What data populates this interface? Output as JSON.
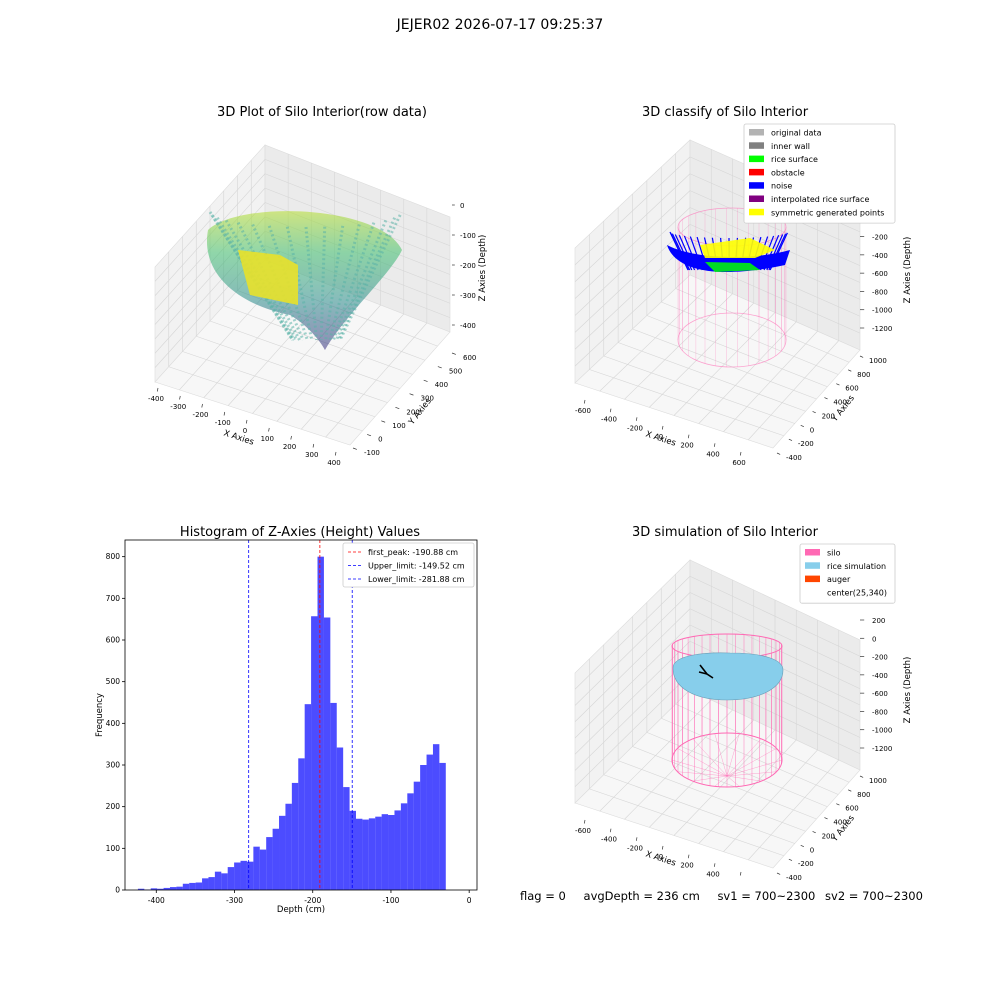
{
  "suptitle": "JEJER02 2026-07-17 09:25:37",
  "panels": {
    "raw": {
      "title": "3D Plot of Silo Interior(row data)",
      "xlabel": "X Axies",
      "ylabel": "Y Axies",
      "zlabel": "Z Axies (Depth)",
      "xticks": [
        "-400",
        "-300",
        "-200",
        "-100",
        "0",
        "100",
        "200",
        "300",
        "400"
      ],
      "yticks": [
        "-100",
        "0",
        "100",
        "200",
        "300",
        "400",
        "500",
        "600"
      ],
      "zticks": [
        "0",
        "-100",
        "-200",
        "-300",
        "-400"
      ]
    },
    "classify": {
      "title": "3D classify of Silo Interior",
      "xlabel": "X Axies",
      "ylabel": "Y Axies",
      "zlabel": "Z Axies (Depth)",
      "xticks": [
        "-600",
        "-400",
        "-200",
        "0",
        "200",
        "400",
        "600"
      ],
      "yticks": [
        "-400",
        "-200",
        "0",
        "200",
        "400",
        "600",
        "800",
        "1000"
      ],
      "zticks": [
        "200",
        "0",
        "-200",
        "-400",
        "-600",
        "-800",
        "-1000",
        "-1200"
      ],
      "legend": [
        {
          "label": "original data",
          "color": "#b3b3b3"
        },
        {
          "label": "inner wall",
          "color": "#808080"
        },
        {
          "label": "rice surface",
          "color": "#00ff00"
        },
        {
          "label": "obstacle",
          "color": "#ff0000"
        },
        {
          "label": "noise",
          "color": "#0000ff"
        },
        {
          "label": "interpolated rice surface",
          "color": "#800080"
        },
        {
          "label": "symmetric generated points",
          "color": "#ffff00"
        }
      ]
    },
    "simulation": {
      "title": "3D simulation of Silo Interior",
      "xlabel": "X Axies",
      "ylabel": "Y Axies",
      "zlabel": "Z Axies (Depth)",
      "xticks": [
        "-600",
        "-400",
        "-200",
        "0",
        "200",
        "400",
        "600"
      ],
      "yticks": [
        "-400",
        "-200",
        "0",
        "200",
        "400",
        "600",
        "800",
        "1000"
      ],
      "zticks": [
        "200",
        "0",
        "-200",
        "-400",
        "-600",
        "-800",
        "-1000",
        "-1200"
      ],
      "legend": [
        {
          "label": "silo",
          "color": "#ff69b4"
        },
        {
          "label": "rice simulation",
          "color": "#87ceeb"
        },
        {
          "label": "auger",
          "color": "#ff4500"
        },
        {
          "label": "center(25,340)",
          "color": ""
        }
      ]
    }
  },
  "chart_data": {
    "type": "bar",
    "title": "Histogram of Z-Axies (Height) Values",
    "xlabel": "Depth (cm)",
    "ylabel": "Frequency",
    "xlim": [
      -440,
      10
    ],
    "ylim": [
      0,
      840
    ],
    "xticks": [
      -400,
      -300,
      -200,
      -100,
      0
    ],
    "yticks": [
      0,
      100,
      200,
      300,
      400,
      500,
      600,
      700,
      800
    ],
    "bar_color": "#0000ff",
    "bin_start": -423.5,
    "bin_width": 8.2,
    "values": [
      3,
      1,
      4,
      3,
      5,
      7,
      8,
      15,
      17,
      18,
      28,
      31,
      44,
      40,
      55,
      66,
      70,
      68,
      104,
      97,
      127,
      147,
      178,
      207,
      257,
      316,
      446,
      657,
      800,
      654,
      449,
      342,
      247,
      190,
      171,
      169,
      172,
      176,
      182,
      180,
      191,
      208,
      232,
      260,
      300,
      325,
      350,
      305
    ],
    "reference_lines": [
      {
        "label": "first_peak: -190.88 cm",
        "x": -190.88,
        "color": "#ff0000"
      },
      {
        "label": "Upper_limit: -149.52 cm",
        "x": -149.52,
        "color": "#0000ff"
      },
      {
        "label": "Lower_limit: -281.88 cm",
        "x": -281.88,
        "color": "#0000ff"
      }
    ]
  },
  "footer": {
    "flag": "flag = 0",
    "avg_depth": "avgDepth = 236 cm",
    "sv1": "sv1 = 700~2300",
    "sv2": "sv2 = 700~2300"
  }
}
